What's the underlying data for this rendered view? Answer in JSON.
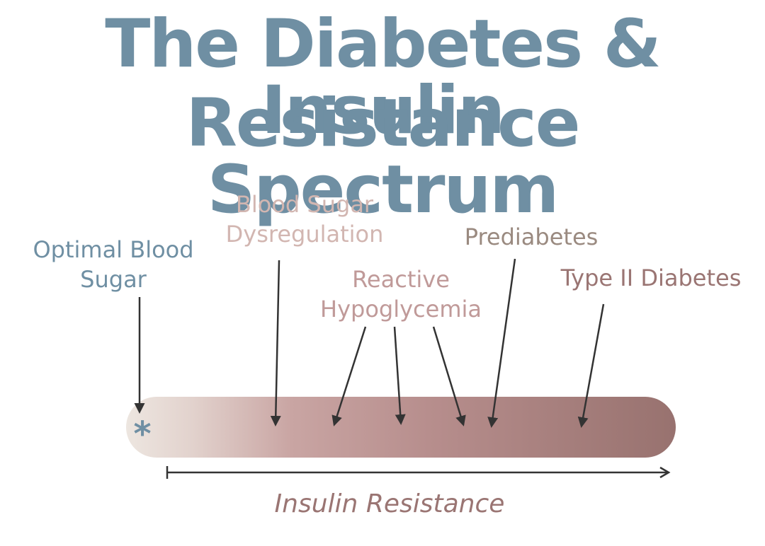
{
  "title": {
    "line1": "The Diabetes & Insulin",
    "line2": "Resistance Spectrum"
  },
  "labels": {
    "optimal": [
      "Optimal Blood",
      "Sugar"
    ],
    "dysregulation": [
      "Blood Sugar",
      "Dysregulation"
    ],
    "reactive": [
      "Reactive",
      "Hypoglycemia"
    ],
    "prediabetes": [
      "Prediabetes"
    ],
    "type2": [
      "Type II Diabetes"
    ]
  },
  "marker": "*",
  "axis_label": "Insulin Resistance",
  "colors": {
    "title": "#6f8fa3",
    "optimal": "#6f8fa3",
    "dysregulation": "#d2b6b1",
    "reactive": "#c09a99",
    "prediabetes": "#9a8a80",
    "type2": "#9a7573",
    "bar_start": "#ebe2dc",
    "bar_mid": "#b98f8e",
    "bar_end": "#9a7573",
    "arrow": "#333333"
  }
}
